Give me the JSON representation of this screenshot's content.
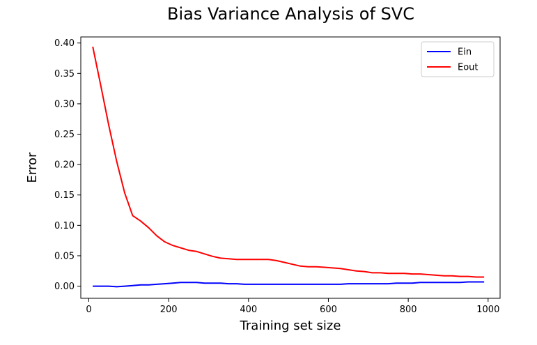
{
  "chart_data": {
    "type": "line",
    "title": "Bias Variance Analysis of SVC",
    "xlabel": "Training set size",
    "ylabel": "Error",
    "xlim": [
      -20,
      1030
    ],
    "ylim": [
      -0.02,
      0.41
    ],
    "xticks": [
      0,
      200,
      400,
      600,
      800,
      1000
    ],
    "yticks": [
      0.0,
      0.05,
      0.1,
      0.15,
      0.2,
      0.25,
      0.3,
      0.35,
      0.4
    ],
    "ytick_labels": [
      "0.00",
      "0.05",
      "0.10",
      "0.15",
      "0.20",
      "0.25",
      "0.30",
      "0.35",
      "0.40"
    ],
    "xtick_labels": [
      "0",
      "200",
      "400",
      "600",
      "800",
      "1000"
    ],
    "grid": false,
    "legend_position": "top-right",
    "series": [
      {
        "name": "Ein",
        "color": "#0000ff",
        "x": [
          10,
          30,
          50,
          70,
          90,
          110,
          130,
          150,
          170,
          190,
          210,
          230,
          250,
          270,
          290,
          310,
          330,
          350,
          370,
          390,
          410,
          430,
          450,
          470,
          490,
          510,
          530,
          550,
          570,
          590,
          610,
          630,
          650,
          670,
          690,
          710,
          730,
          750,
          770,
          790,
          810,
          830,
          850,
          870,
          890,
          910,
          930,
          950,
          970,
          990
        ],
        "values": [
          0.0,
          0.0,
          0.0,
          -0.001,
          0.0,
          0.001,
          0.002,
          0.002,
          0.003,
          0.004,
          0.005,
          0.006,
          0.006,
          0.006,
          0.005,
          0.005,
          0.005,
          0.004,
          0.004,
          0.003,
          0.003,
          0.003,
          0.003,
          0.003,
          0.003,
          0.003,
          0.003,
          0.003,
          0.003,
          0.003,
          0.003,
          0.003,
          0.004,
          0.004,
          0.004,
          0.004,
          0.004,
          0.004,
          0.005,
          0.005,
          0.005,
          0.006,
          0.006,
          0.006,
          0.006,
          0.006,
          0.006,
          0.007,
          0.007,
          0.007
        ]
      },
      {
        "name": "Eout",
        "color": "#ff0000",
        "x": [
          10,
          30,
          50,
          70,
          90,
          110,
          130,
          150,
          170,
          190,
          210,
          230,
          250,
          270,
          290,
          310,
          330,
          350,
          370,
          390,
          410,
          430,
          450,
          470,
          490,
          510,
          530,
          550,
          570,
          590,
          610,
          630,
          650,
          670,
          690,
          710,
          730,
          750,
          770,
          790,
          810,
          830,
          850,
          870,
          890,
          910,
          930,
          950,
          970,
          990
        ],
        "values": [
          0.394,
          0.33,
          0.265,
          0.205,
          0.153,
          0.116,
          0.107,
          0.096,
          0.083,
          0.073,
          0.067,
          0.063,
          0.059,
          0.057,
          0.053,
          0.049,
          0.046,
          0.045,
          0.044,
          0.044,
          0.044,
          0.044,
          0.044,
          0.042,
          0.039,
          0.036,
          0.033,
          0.032,
          0.032,
          0.031,
          0.03,
          0.029,
          0.027,
          0.025,
          0.024,
          0.022,
          0.022,
          0.021,
          0.021,
          0.021,
          0.02,
          0.02,
          0.019,
          0.018,
          0.017,
          0.017,
          0.016,
          0.016,
          0.015,
          0.015
        ]
      }
    ]
  }
}
